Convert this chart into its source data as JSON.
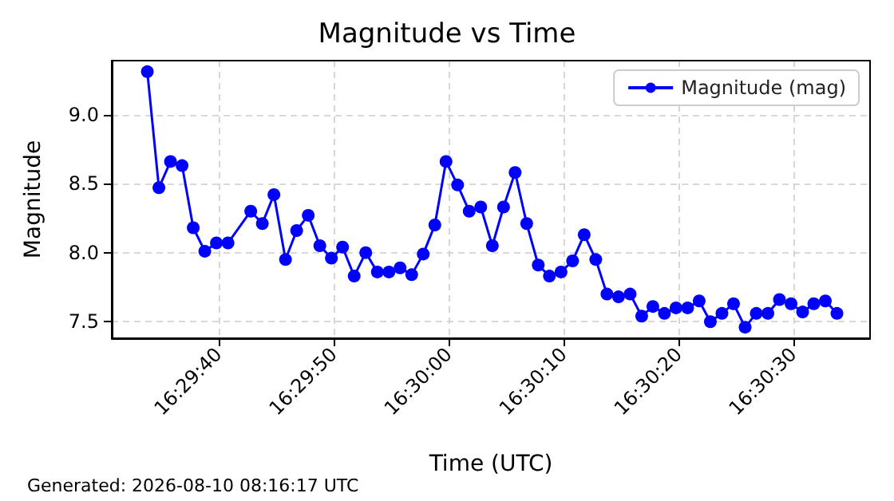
{
  "chart_data": {
    "type": "line",
    "title": "Magnitude vs Time",
    "xlabel": "Time (UTC)",
    "ylabel": "Magnitude",
    "annotations": [
      "Generated: 2026-08-10 08:16:17 UTC"
    ],
    "x": [
      16.49272,
      16.493,
      16.49328,
      16.49356,
      16.49383,
      16.49411,
      16.49439,
      16.49467,
      16.49522,
      16.4955,
      16.49578,
      16.49606,
      16.49633,
      16.49661,
      16.49689,
      16.49717,
      16.49744,
      16.49772,
      16.498,
      16.49828,
      16.49856,
      16.49883,
      16.49911,
      16.49939,
      16.49967,
      16.49994,
      16.50022,
      16.5005,
      16.50078,
      16.50106,
      16.50133,
      16.50161,
      16.50189,
      16.50217,
      16.50244,
      16.50272,
      16.503,
      16.50328,
      16.50356,
      16.50383,
      16.50411,
      16.50439,
      16.50467,
      16.50494,
      16.50522,
      16.5055,
      16.50578,
      16.50606,
      16.50633,
      16.50661,
      16.50689,
      16.50717,
      16.50744,
      16.50772,
      16.508,
      16.50828,
      16.50856,
      16.50883,
      16.50911,
      16.50939
    ],
    "series": [
      {
        "name": "Magnitude (mag)",
        "color": "#0000ff",
        "values": [
          9.31,
          8.47,
          8.66,
          8.63,
          8.18,
          8.01,
          8.07,
          8.07,
          8.3,
          8.21,
          8.42,
          7.95,
          8.16,
          8.27,
          8.05,
          7.96,
          8.04,
          7.83,
          8.0,
          7.86,
          7.86,
          7.89,
          7.84,
          7.99,
          8.2,
          8.66,
          8.49,
          8.3,
          8.33,
          8.05,
          8.33,
          8.58,
          8.21,
          7.91,
          7.83,
          7.86,
          7.94,
          8.13,
          7.95,
          7.7,
          7.68,
          7.7,
          7.54,
          7.61,
          7.56,
          7.6,
          7.6,
          7.65,
          7.5,
          7.56,
          7.63,
          7.46,
          7.56,
          7.56,
          7.66,
          7.63,
          7.57,
          7.63,
          7.65,
          7.56
        ]
      }
    ],
    "xlim": [
      16.49186,
      16.51019
    ],
    "xticks": [
      {
        "value": 16.49444,
        "label": "16:29:40"
      },
      {
        "value": 16.49722,
        "label": "16:29:50"
      },
      {
        "value": 16.5,
        "label": "16:30:00"
      },
      {
        "value": 16.50278,
        "label": "16:30:10"
      },
      {
        "value": 16.50556,
        "label": "16:30:20"
      },
      {
        "value": 16.50833,
        "label": "16:30:30"
      }
    ],
    "ylim": [
      7.38,
      9.39
    ],
    "yticks": [
      {
        "value": 7.5,
        "label": "7.5"
      },
      {
        "value": 8.0,
        "label": "8.0"
      },
      {
        "value": 8.5,
        "label": "8.5"
      },
      {
        "value": 9.0,
        "label": "9.0"
      }
    ],
    "grid": true,
    "legend": "top right",
    "marker": "circle",
    "line_style": "solid"
  }
}
